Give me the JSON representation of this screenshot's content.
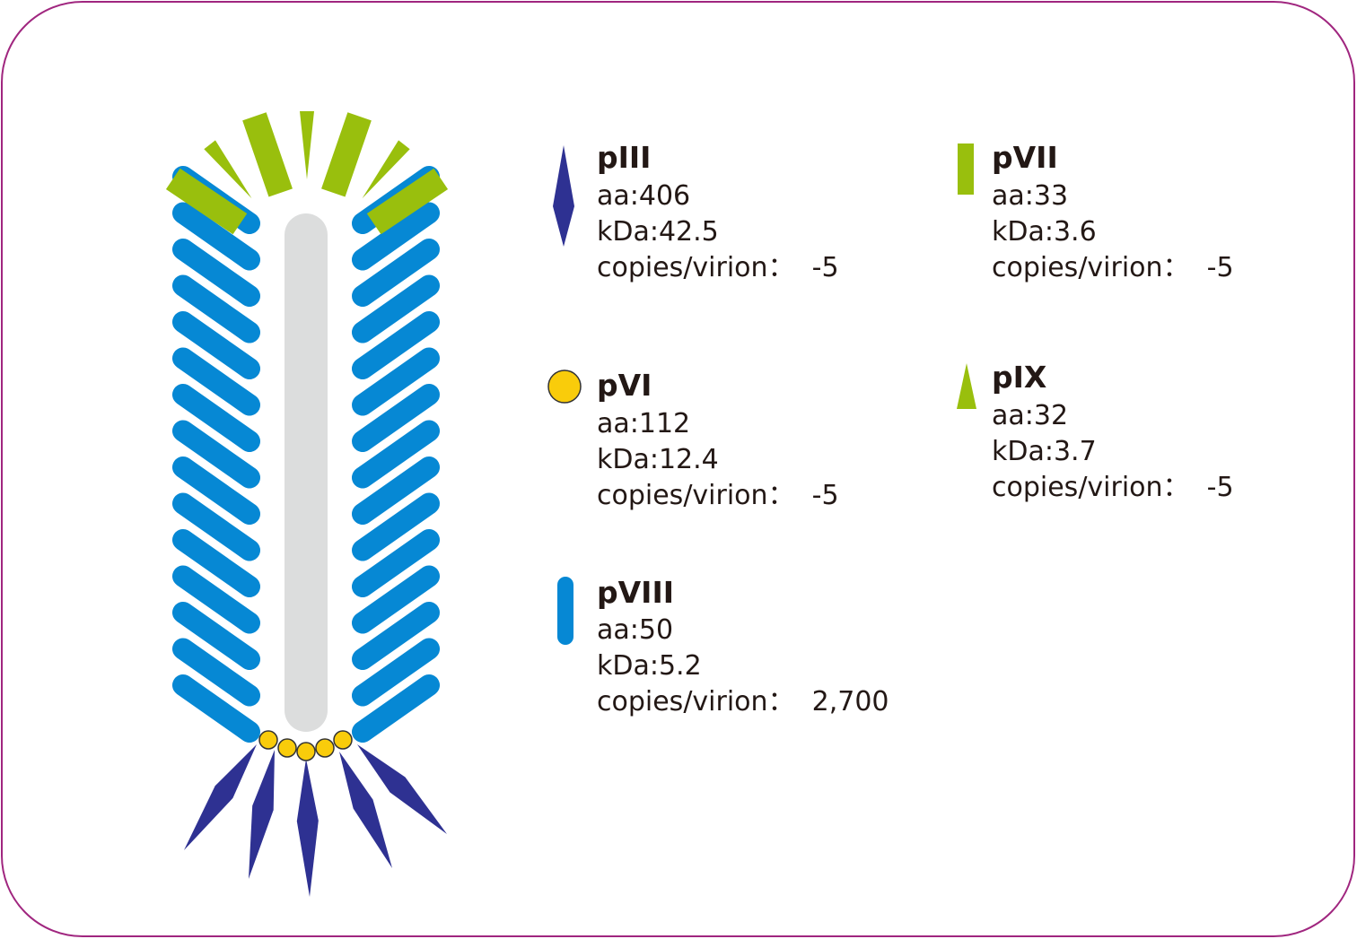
{
  "proteins": [
    {
      "name": "pIII",
      "aa": "aa:406",
      "kda": "kDa:42.5",
      "copies": "copies/virion：  -5"
    },
    {
      "name": "pVI",
      "aa": "aa:112",
      "kda": "kDa:12.4",
      "copies": "copies/virion：  -5"
    },
    {
      "name": "pVIII",
      "aa": "aa:50",
      "kda": "kDa:5.2",
      "copies": "copies/virion：  2,700"
    },
    {
      "name": "pVII",
      "aa": "aa:33",
      "kda": "kDa:3.6",
      "copies": "copies/virion：  -5"
    },
    {
      "name": "pIX",
      "aa": "aa:32",
      "kda": "kDa:3.7",
      "copies": "copies/virion：  -5"
    }
  ]
}
